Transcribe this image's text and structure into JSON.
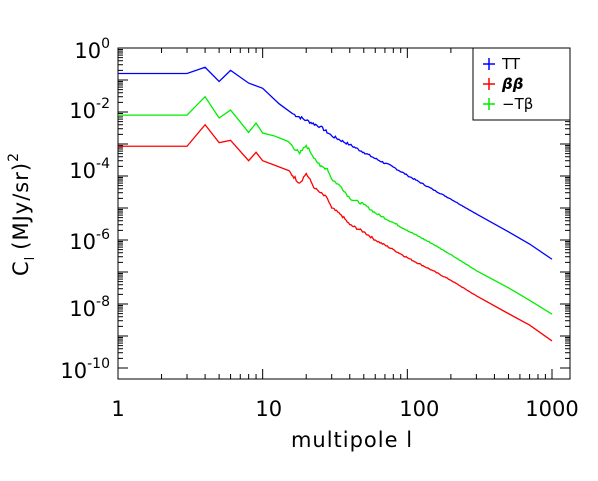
{
  "chart_data": {
    "type": "line",
    "x_scale": "log",
    "y_scale": "log",
    "xlabel": "multipole l",
    "ylabel": {
      "base": "C",
      "sub": "l",
      "unit": "(MJy/sr)",
      "sup": "2"
    },
    "xlim": [
      1,
      1000
    ],
    "ylim": [
      1e-11,
      1
    ],
    "x_ticks": [
      {
        "value": 1,
        "label": "1"
      },
      {
        "value": 10,
        "label": "10"
      },
      {
        "value": 100,
        "label": "100"
      },
      {
        "value": 1000,
        "label": "1000"
      }
    ],
    "y_ticks": [
      {
        "value": 1,
        "base": "10",
        "exp": "0"
      },
      {
        "value": 0.01,
        "base": "10",
        "exp": "-2"
      },
      {
        "value": 0.0001,
        "base": "10",
        "exp": "-4"
      },
      {
        "value": 1e-06,
        "base": "10",
        "exp": "-6"
      },
      {
        "value": 1e-08,
        "base": "10",
        "exp": "-8"
      },
      {
        "value": 1e-10,
        "base": "10",
        "exp": "-10"
      }
    ],
    "legend_position": "top-right",
    "series": [
      {
        "name": "TT",
        "color": "#0000ff",
        "x": [
          1,
          3,
          4,
          5,
          6,
          8,
          10,
          13,
          16,
          20,
          25,
          30,
          40,
          50,
          60,
          80,
          100,
          150,
          200,
          300,
          500,
          700,
          1000
        ],
        "y": [
          0.16,
          0.16,
          0.25,
          0.09,
          0.2,
          0.08,
          0.055,
          0.018,
          0.009,
          0.0055,
          0.0035,
          0.0018,
          0.00095,
          0.00055,
          0.00035,
          0.00019,
          0.000105,
          3.8e-05,
          1.9e-05,
          6.5e-06,
          1.8e-06,
          7.5e-07,
          2.5e-07
        ]
      },
      {
        "name": "ββ",
        "color": "#ff0000",
        "x": [
          1,
          3,
          4,
          5,
          6,
          8,
          9,
          10,
          12,
          15,
          18,
          20,
          23,
          25,
          28,
          30,
          35,
          40,
          50,
          60,
          80,
          100,
          150,
          200,
          300,
          500,
          700,
          1000
        ],
        "y": [
          0.00085,
          0.00085,
          0.004,
          0.0011,
          0.0013,
          0.0003,
          0.00055,
          0.0003,
          0.00022,
          0.00015,
          6e-05,
          0.00012,
          4e-05,
          3e-05,
          2e-05,
          1e-05,
          6e-06,
          3e-06,
          1.8e-06,
          1e-06,
          5e-07,
          2.8e-07,
          1.1e-07,
          5.5e-08,
          1.8e-08,
          5e-09,
          2.2e-09,
          7e-10
        ]
      },
      {
        "name": "−Tβ",
        "color": "#00ee00",
        "x": [
          1,
          3,
          4,
          5,
          6,
          8,
          9,
          10,
          12,
          15,
          18,
          20,
          23,
          25,
          28,
          30,
          35,
          40,
          50,
          60,
          80,
          100,
          150,
          200,
          300,
          500,
          700,
          1000
        ],
        "y": [
          0.008,
          0.008,
          0.03,
          0.0065,
          0.0115,
          0.0023,
          0.0045,
          0.0022,
          0.0018,
          0.0012,
          0.0005,
          0.0009,
          0.00035,
          0.0002,
          0.00017,
          8e-05,
          4.5e-05,
          2e-05,
          1.3e-05,
          7e-06,
          3.5e-06,
          2e-06,
          7.5e-07,
          3.5e-07,
          1.1e-07,
          3.2e-08,
          1.3e-08,
          4.8e-09
        ]
      }
    ]
  }
}
